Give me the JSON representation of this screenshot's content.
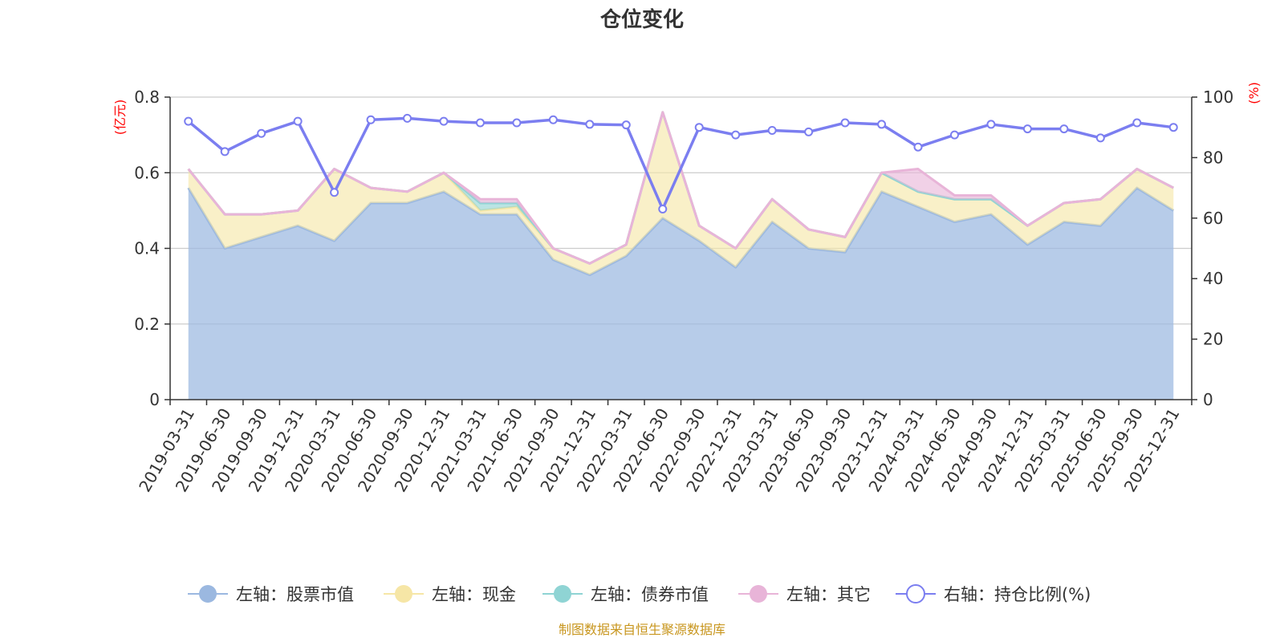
{
  "chart_data": {
    "type": "area",
    "title": "仓位变化",
    "left_axis": {
      "unit_label": "(亿元)",
      "ylim": [
        0,
        0.8
      ],
      "ticks": [
        "0",
        "0.2",
        "0.4",
        "0.6",
        "0.8"
      ]
    },
    "right_axis": {
      "unit_label": "(%)",
      "ylim": [
        0,
        100
      ],
      "ticks": [
        "0",
        "20",
        "40",
        "60",
        "80",
        "100"
      ]
    },
    "grid": true,
    "legend_position": "bottom",
    "categories": [
      "2019-03-31",
      "2019-06-30",
      "2019-09-30",
      "2019-12-31",
      "2020-03-31",
      "2020-06-30",
      "2020-09-30",
      "2020-12-31",
      "2021-03-31",
      "2021-06-30",
      "2021-09-30",
      "2021-12-31",
      "2022-03-31",
      "2022-06-30",
      "2022-09-30",
      "2022-12-31",
      "2023-03-31",
      "2023-06-30",
      "2023-09-30",
      "2023-12-31",
      "2024-03-31",
      "2024-06-30",
      "2024-09-30",
      "2024-12-31",
      "2025-03-31",
      "2025-06-30",
      "2025-09-30",
      "2025-12-31"
    ],
    "series": [
      {
        "name": "左轴：股票市值",
        "axis": "left",
        "color": "#9bb8e0",
        "values": [
          0.56,
          0.4,
          0.43,
          0.46,
          0.42,
          0.52,
          0.52,
          0.55,
          0.49,
          0.49,
          0.37,
          0.33,
          0.38,
          0.48,
          0.42,
          0.35,
          0.47,
          0.4,
          0.39,
          0.55,
          0.51,
          0.47,
          0.49,
          0.41,
          0.47,
          0.46,
          0.56,
          0.5
        ]
      },
      {
        "name": "左轴：现金",
        "axis": "left",
        "color": "#f6e6a6",
        "values": [
          0.05,
          0.09,
          0.06,
          0.04,
          0.19,
          0.04,
          0.03,
          0.05,
          0.01,
          0.02,
          0.03,
          0.03,
          0.03,
          0.28,
          0.04,
          0.05,
          0.06,
          0.05,
          0.04,
          0.05,
          0.04,
          0.06,
          0.04,
          0.05,
          0.05,
          0.07,
          0.05,
          0.06
        ]
      },
      {
        "name": "左轴：债券市值",
        "axis": "left",
        "color": "#8fd4d4",
        "values": [
          0,
          0,
          0,
          0,
          0,
          0,
          0,
          0,
          0.02,
          0.01,
          0,
          0,
          0,
          0,
          0,
          0,
          0,
          0,
          0,
          0,
          0,
          0,
          0,
          0,
          0,
          0,
          0,
          0
        ]
      },
      {
        "name": "左轴：其它",
        "axis": "left",
        "color": "#e8b4d8",
        "values": [
          0,
          0,
          0,
          0,
          0,
          0,
          0,
          0,
          0.01,
          0.01,
          0,
          0,
          0,
          0,
          0,
          0,
          0,
          0,
          0,
          0,
          0.06,
          0.01,
          0.01,
          0,
          0,
          0,
          0,
          0
        ]
      },
      {
        "name": "右轴：持仓比例(%)",
        "axis": "right",
        "color": "#7b7ef0",
        "values": [
          92,
          82,
          88,
          92,
          68.5,
          92.5,
          93,
          92,
          91.5,
          91.5,
          92.5,
          91,
          90.8,
          63,
          90,
          87.5,
          89,
          88.5,
          91.5,
          91,
          83.5,
          87.5,
          91,
          89.5,
          89.5,
          86.5,
          91.5,
          90
        ]
      }
    ]
  },
  "footer": "制图数据来自恒生聚源数据库"
}
